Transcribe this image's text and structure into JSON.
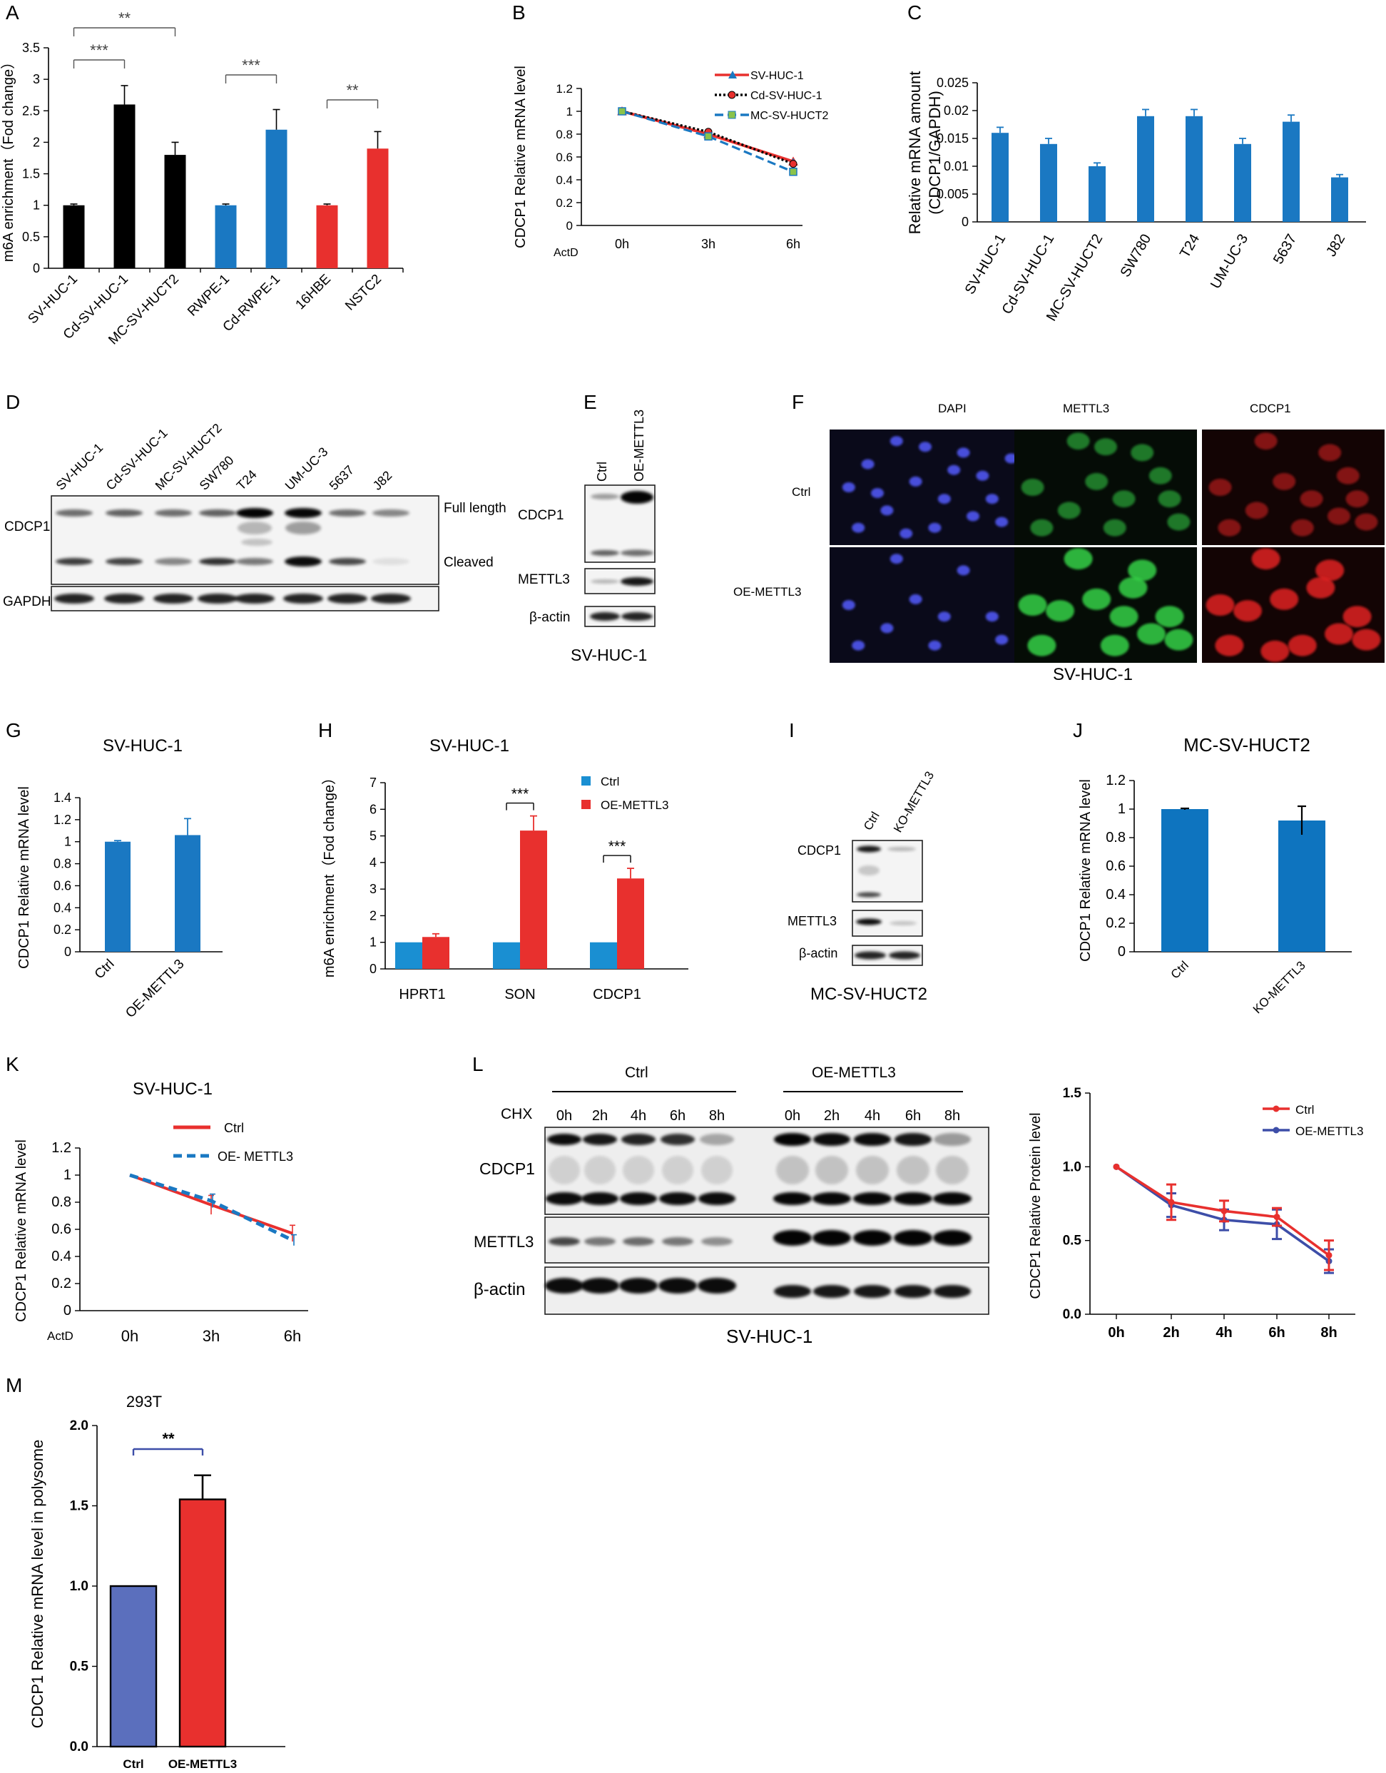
{
  "panel_letters": [
    "A",
    "B",
    "C",
    "D",
    "E",
    "F",
    "G",
    "H",
    "I",
    "J",
    "K",
    "L",
    "M"
  ],
  "chart_data": [
    {
      "panel": "A",
      "type": "bar",
      "categories": [
        "SV-HUC-1",
        "Cd-SV-HUC-1",
        "MC-SV-HUCT2",
        "RWPE-1",
        "Cd-RWPE-1",
        "16HBE",
        "NSTC2"
      ],
      "values": [
        1.0,
        2.6,
        1.8,
        1.0,
        2.2,
        1.0,
        1.9
      ],
      "errors": [
        0.02,
        0.3,
        0.2,
        0.02,
        0.32,
        0.02,
        0.27
      ],
      "colors": [
        "#000000",
        "#000000",
        "#000000",
        "#1a78c2",
        "#1a78c2",
        "#e8302e",
        "#e8302e"
      ],
      "ylabel": "m6A enrichment（Fod change）",
      "ylim": [
        0,
        3.5
      ],
      "yticks": [
        "0",
        "0.5",
        "1",
        "1.5",
        "2",
        "2.5",
        "3",
        "3.5"
      ],
      "significance": [
        {
          "from": 0,
          "to": 1,
          "label": "***"
        },
        {
          "from": 0,
          "to": 2,
          "label": "**"
        },
        {
          "from": 3,
          "to": 4,
          "label": "***"
        },
        {
          "from": 5,
          "to": 6,
          "label": "**"
        }
      ]
    },
    {
      "panel": "B",
      "type": "line",
      "x": [
        "0h",
        "3h",
        "6h"
      ],
      "x_prefix": "ActD",
      "series": [
        {
          "name": "SV-HUC-1",
          "values": [
            1.0,
            0.8,
            0.56
          ],
          "color": "#e8302e",
          "marker": "▲"
        },
        {
          "name": "Cd-SV-HUC-1",
          "values": [
            1.0,
            0.82,
            0.54
          ],
          "color": "#000000",
          "marker": "●"
        },
        {
          "name": "MC-SV-HUCT2",
          "values": [
            1.0,
            0.78,
            0.47
          ],
          "color": "#1a78c2",
          "marker": "■"
        }
      ],
      "ylabel": "CDCP1  Relative mRNA level",
      "ylim": [
        0,
        1.2
      ],
      "yticks": [
        "0",
        "0.2",
        "0.4",
        "0.6",
        "0.8",
        "1",
        "1.2"
      ]
    },
    {
      "panel": "C",
      "type": "bar",
      "categories": [
        "SV-HUC-1",
        "Cd-SV-HUC-1",
        "MC-SV-HUCT2",
        "SW780",
        "T24",
        "UM-UC-3",
        "5637",
        "J82"
      ],
      "values": [
        0.016,
        0.014,
        0.01,
        0.019,
        0.019,
        0.014,
        0.018,
        0.008
      ],
      "errors": [
        0.001,
        0.001,
        0.0006,
        0.0012,
        0.0012,
        0.001,
        0.0012,
        0.0005
      ],
      "color": "#1a78c2",
      "ylabel": "Relative mRNA amount (CDCP1/GAPDH)",
      "ylim": [
        0,
        0.025
      ],
      "yticks": [
        "0",
        "0.005",
        "0.01",
        "0.015",
        "0.02",
        "0.025"
      ]
    },
    {
      "panel": "G",
      "type": "bar",
      "title": "SV-HUC-1",
      "categories": [
        "Ctrl",
        "OE-METTL3"
      ],
      "values": [
        1.0,
        1.06
      ],
      "errors": [
        0.01,
        0.15
      ],
      "color": "#1a78c2",
      "ylabel": "CDCP1  Relative mRNA level",
      "ylim": [
        0,
        1.4
      ],
      "yticks": [
        "0",
        "0.2",
        "0.4",
        "0.6",
        "0.8",
        "1",
        "1.2",
        "1.4"
      ]
    },
    {
      "panel": "H",
      "type": "bar",
      "title": "SV-HUC-1",
      "categories": [
        "HPRT1",
        "SON",
        "CDCP1"
      ],
      "series": [
        {
          "name": "Ctrl",
          "values": [
            1.0,
            1.0,
            1.0
          ],
          "errors": [
            0,
            0,
            0
          ],
          "color": "#1a8fd2"
        },
        {
          "name": "OE-METTL3",
          "values": [
            1.2,
            5.2,
            3.4
          ],
          "errors": [
            0.12,
            0.55,
            0.38
          ],
          "color": "#e8302e"
        }
      ],
      "ylabel": "m6A enrichment（Fod change）",
      "ylim": [
        0,
        7
      ],
      "yticks": [
        "0",
        "1",
        "2",
        "3",
        "4",
        "5",
        "6",
        "7"
      ],
      "significance": [
        {
          "cat": 1,
          "label": "***"
        },
        {
          "cat": 2,
          "label": "***"
        }
      ]
    },
    {
      "panel": "J",
      "type": "bar",
      "title": "MC-SV-HUCT2",
      "categories": [
        "Ctrl",
        "KO-METTL3"
      ],
      "values": [
        1.0,
        0.92
      ],
      "errors": [
        0.005,
        0.1
      ],
      "color": "#0e74bf",
      "ylabel": "CDCP1  Relative mRNA level",
      "ylim": [
        0,
        1.2
      ],
      "yticks": [
        "0",
        "0.2",
        "0.4",
        "0.6",
        "0.8",
        "1",
        "1.2"
      ]
    },
    {
      "panel": "K",
      "type": "line",
      "title": "SV-HUC-1",
      "x": [
        "0h",
        "3h",
        "6h"
      ],
      "x_prefix": "ActD",
      "series": [
        {
          "name": "Ctrl",
          "values": [
            1.0,
            0.78,
            0.57
          ],
          "errors": [
            0,
            0.07,
            0.06
          ],
          "color": "#e8302e",
          "dash": false
        },
        {
          "name": "OE- METTL3",
          "values": [
            1.0,
            0.81,
            0.52
          ],
          "errors": [
            0,
            0.05,
            0.04
          ],
          "color": "#1a78c2",
          "dash": true
        }
      ],
      "ylabel": "CDCP1  Relative mRNA level",
      "ylim": [
        0,
        1.2
      ],
      "yticks": [
        "0",
        "0.2",
        "0.4",
        "0.6",
        "0.8",
        "1",
        "1.2"
      ]
    },
    {
      "panel": "L",
      "type": "line",
      "x": [
        "0h",
        "2h",
        "4h",
        "6h",
        "8h"
      ],
      "series": [
        {
          "name": "Ctrl",
          "values": [
            1.0,
            0.76,
            0.7,
            0.66,
            0.4
          ],
          "errors": [
            0,
            0.12,
            0.07,
            0.06,
            0.1
          ],
          "color": "#e8302e"
        },
        {
          "name": "OE-METTL3",
          "values": [
            1.0,
            0.74,
            0.64,
            0.61,
            0.36
          ],
          "errors": [
            0,
            0.08,
            0.07,
            0.1,
            0.08
          ],
          "color": "#3d4ea8"
        }
      ],
      "ylabel": "CDCP1  Relative Protein level",
      "ylim": [
        0,
        1.5
      ],
      "yticks": [
        "0.0",
        "0.5",
        "1.0",
        "1.5"
      ]
    },
    {
      "panel": "M",
      "type": "bar",
      "title": "293T",
      "categories": [
        "Ctrl",
        "OE-METTL3"
      ],
      "values": [
        1.0,
        1.54
      ],
      "errors": [
        0,
        0.15
      ],
      "colors": [
        "#5b6fbd",
        "#e8302e"
      ],
      "ylabel": "CDCP1  Relative mRNA level in polysome",
      "ylim": [
        0,
        2.0
      ],
      "yticks": [
        "0.0",
        "0.5",
        "1.0",
        "1.5",
        "2.0"
      ],
      "significance": [
        {
          "from": 0,
          "to": 1,
          "label": "**"
        }
      ]
    }
  ],
  "blots": {
    "D": {
      "lanes": [
        "SV-HUC-1",
        "Cd-SV-HUC-1",
        "MC-SV-HUCT2",
        "SW780",
        "T24",
        "UM-UC-3",
        "5637",
        "J82"
      ],
      "rows": [
        "CDCP1",
        "GAPDH"
      ],
      "bands": [
        "Full length",
        "Cleaved"
      ]
    },
    "E": {
      "lanes": [
        "Ctrl",
        "OE-METTL3"
      ],
      "rows": [
        "CDCP1",
        "METTL3",
        "β-actin"
      ],
      "caption": "SV-HUC-1"
    },
    "F": {
      "columns": [
        "DAPI",
        "METTL3",
        "CDCP1"
      ],
      "rows": [
        "Ctrl",
        "OE-METTL3"
      ],
      "caption": "SV-HUC-1"
    },
    "I": {
      "lanes": [
        "Ctrl",
        "KO-METTL3"
      ],
      "rows": [
        "CDCP1",
        "METTL3",
        "β-actin"
      ],
      "caption": "MC-SV-HUCT2"
    },
    "L": {
      "groups": [
        "Ctrl",
        "OE-METTL3"
      ],
      "cond_label": "CHX",
      "timepoints": [
        "0h",
        "2h",
        "4h",
        "6h",
        "8h"
      ],
      "rows": [
        "CDCP1",
        "METTL3",
        "β-actin"
      ],
      "caption": "SV-HUC-1"
    }
  }
}
